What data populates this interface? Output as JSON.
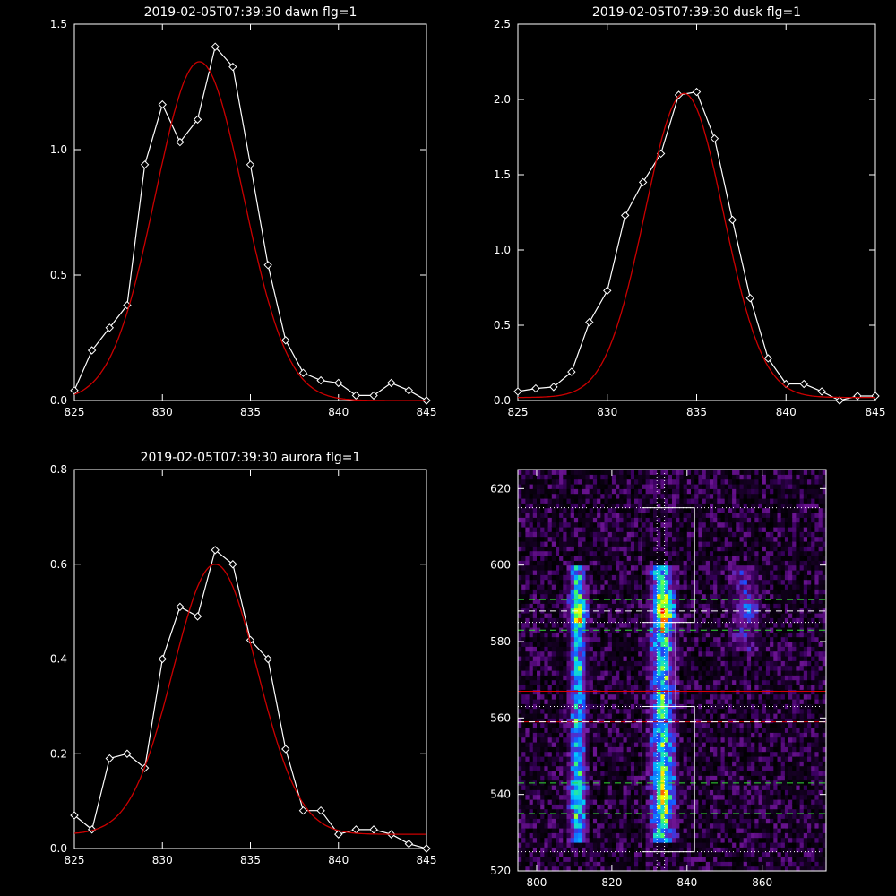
{
  "chart_data": [
    {
      "type": "line",
      "title": "2019-02-05T07:39:30 dawn flg=1",
      "xlim": [
        825,
        845
      ],
      "ylim": [
        0,
        1.5
      ],
      "xticks": [
        825,
        830,
        835,
        840,
        845
      ],
      "yticks": [
        0.0,
        0.5,
        1.0,
        1.5
      ],
      "xtick_labels": [
        "825",
        "830",
        "835",
        "840",
        "845"
      ],
      "ytick_labels": [
        "0.0",
        "0.5",
        "1.0",
        "1.5"
      ],
      "series": [
        {
          "kind": "data",
          "color": "#ffffff",
          "marker": "diamond",
          "x": [
            825,
            826,
            827,
            828,
            829,
            830,
            831,
            832,
            833,
            834,
            835,
            836,
            837,
            838,
            839,
            840,
            841,
            842,
            843,
            844,
            845
          ],
          "y": [
            0.04,
            0.2,
            0.29,
            0.38,
            0.94,
            1.18,
            1.03,
            1.12,
            1.41,
            1.33,
            0.94,
            0.54,
            0.24,
            0.11,
            0.08,
            0.07,
            0.02,
            0.02,
            0.07,
            0.04,
            0.0
          ]
        },
        {
          "kind": "fit",
          "color": "#cc0000",
          "gauss": {
            "amp": 1.35,
            "center": 832.1,
            "sigma": 2.5,
            "base": 0.0
          }
        }
      ]
    },
    {
      "type": "line",
      "title": "2019-02-05T07:39:30 dusk flg=1",
      "xlim": [
        825,
        845
      ],
      "ylim": [
        0,
        2.5
      ],
      "xticks": [
        825,
        830,
        835,
        840,
        845
      ],
      "yticks": [
        0.0,
        0.5,
        1.0,
        1.5,
        2.0,
        2.5
      ],
      "xtick_labels": [
        "825",
        "830",
        "835",
        "840",
        "845"
      ],
      "ytick_labels": [
        "0.0",
        "0.5",
        "1.0",
        "1.5",
        "2.0",
        "2.5"
      ],
      "series": [
        {
          "kind": "data",
          "color": "#ffffff",
          "marker": "diamond",
          "x": [
            825,
            826,
            827,
            828,
            829,
            830,
            831,
            832,
            833,
            834,
            835,
            836,
            837,
            838,
            839,
            840,
            841,
            842,
            843,
            844,
            845
          ],
          "y": [
            0.06,
            0.08,
            0.09,
            0.19,
            0.52,
            0.73,
            1.23,
            1.45,
            1.64,
            2.03,
            2.05,
            1.74,
            1.2,
            0.68,
            0.28,
            0.11,
            0.11,
            0.06,
            0.0,
            0.03,
            0.03
          ]
        },
        {
          "kind": "fit",
          "color": "#cc0000",
          "gauss": {
            "amp": 2.02,
            "center": 834.3,
            "sigma": 2.2,
            "base": 0.02
          }
        }
      ]
    },
    {
      "type": "line",
      "title": "2019-02-05T07:39:30 aurora flg=1",
      "xlim": [
        825,
        845
      ],
      "ylim": [
        0,
        0.8
      ],
      "xticks": [
        825,
        830,
        835,
        840,
        845
      ],
      "yticks": [
        0.0,
        0.2,
        0.4,
        0.6,
        0.8
      ],
      "xtick_labels": [
        "825",
        "830",
        "835",
        "840",
        "845"
      ],
      "ytick_labels": [
        "0.0",
        "0.2",
        "0.4",
        "0.6",
        "0.8"
      ],
      "series": [
        {
          "kind": "data",
          "color": "#ffffff",
          "marker": "diamond",
          "x": [
            825,
            826,
            827,
            828,
            829,
            830,
            831,
            832,
            833,
            834,
            835,
            836,
            837,
            838,
            839,
            840,
            841,
            842,
            843,
            844,
            845
          ],
          "y": [
            0.07,
            0.04,
            0.19,
            0.2,
            0.17,
            0.4,
            0.51,
            0.49,
            0.63,
            0.6,
            0.44,
            0.4,
            0.21,
            0.08,
            0.08,
            0.03,
            0.04,
            0.04,
            0.03,
            0.01,
            0.0
          ]
        },
        {
          "kind": "fit",
          "color": "#cc0000",
          "gauss": {
            "amp": 0.57,
            "center": 833.0,
            "sigma": 2.4,
            "base": 0.03
          }
        }
      ]
    },
    {
      "type": "heatmap",
      "xlim": [
        795,
        877
      ],
      "ylim": [
        520,
        625
      ],
      "xticks": [
        800,
        820,
        840,
        860
      ],
      "yticks": [
        520,
        540,
        560,
        580,
        600,
        620
      ],
      "xtick_labels": [
        "800",
        "820",
        "840",
        "860"
      ],
      "ytick_labels": [
        "520",
        "540",
        "560",
        "580",
        "600",
        "620"
      ],
      "colormap": [
        "#000000",
        "#3a0060",
        "#7a1aa0",
        "#1a4aff",
        "#00c8ff",
        "#40ff60",
        "#ffff00",
        "#ff8000",
        "#ff0000"
      ],
      "bands": [
        {
          "x0": 808,
          "x1": 814,
          "y0": 528,
          "y1": 600,
          "peak": 0.55,
          "peaks": [
            [
              811,
              587,
              0.3
            ],
            [
              810,
              540,
              0.15
            ]
          ]
        },
        {
          "x0": 829,
          "x1": 838,
          "y0": 528,
          "y1": 600,
          "peak": 0.6,
          "peaks": [
            [
              834,
              588,
              0.35
            ],
            [
              834,
              545,
              0.2
            ],
            [
              834,
              538,
              0.15
            ]
          ]
        },
        {
          "x0": 850,
          "x1": 860,
          "y0": 578,
          "y1": 600,
          "peak": 0.2,
          "peaks": [
            [
              857,
              588,
              0.15
            ]
          ]
        }
      ],
      "boxes": [
        {
          "x0": 828,
          "x1": 842,
          "y0": 585,
          "y1": 615
        },
        {
          "x0": 828,
          "x1": 842,
          "y0": 525,
          "y1": 563
        }
      ],
      "inner_strip": {
        "x0": 835,
        "x1": 837,
        "y0": 563,
        "y1": 585
      },
      "vlines_dotted": [
        832,
        834
      ],
      "hlines_dotted": [
        615,
        585,
        563,
        525
      ],
      "hlines_green_dashed": [
        591,
        583,
        543,
        535
      ],
      "hlines_white_dashed": [
        588,
        559
      ],
      "hlines_red": [
        567,
        559
      ]
    }
  ]
}
